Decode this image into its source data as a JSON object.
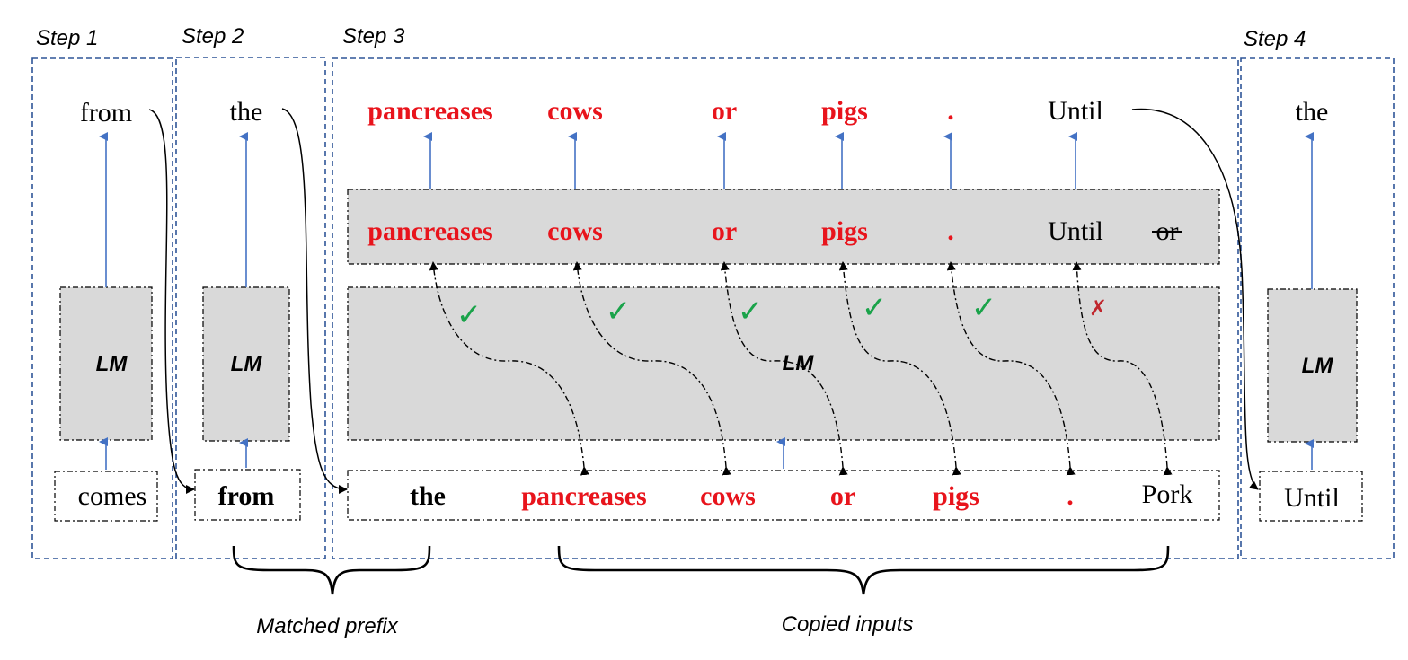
{
  "steps": {
    "step1": "Step 1",
    "step2": "Step 2",
    "step3": "Step 3",
    "step4": "Step 4"
  },
  "lm_label": "LM",
  "step1": {
    "output": "from",
    "input": "comes"
  },
  "step2": {
    "output": "the",
    "input": "from"
  },
  "step4": {
    "output": "the",
    "input": "Until"
  },
  "step3": {
    "outputs": [
      "pancreases",
      "cows",
      "or",
      "pigs",
      ".",
      "Until"
    ],
    "draft": [
      "pancreases",
      "cows",
      "or",
      "pigs",
      ".",
      "Until",
      "or"
    ],
    "inputs": [
      "the",
      "pancreases",
      "cows",
      "or",
      "pigs",
      ".",
      "Pork"
    ],
    "checks": [
      "✓",
      "✓",
      "✓",
      "✓",
      "✓",
      "✗"
    ]
  },
  "braces": {
    "matched_prefix": "Matched prefix",
    "copied_inputs": "Copied inputs"
  },
  "colors": {
    "highlight": "#e8141c",
    "blue_arrow": "#4472c4",
    "box_fill": "#d9d9d9",
    "check": "#1aa34a",
    "cross": "#c0262d",
    "step_border": "#2f5597"
  }
}
